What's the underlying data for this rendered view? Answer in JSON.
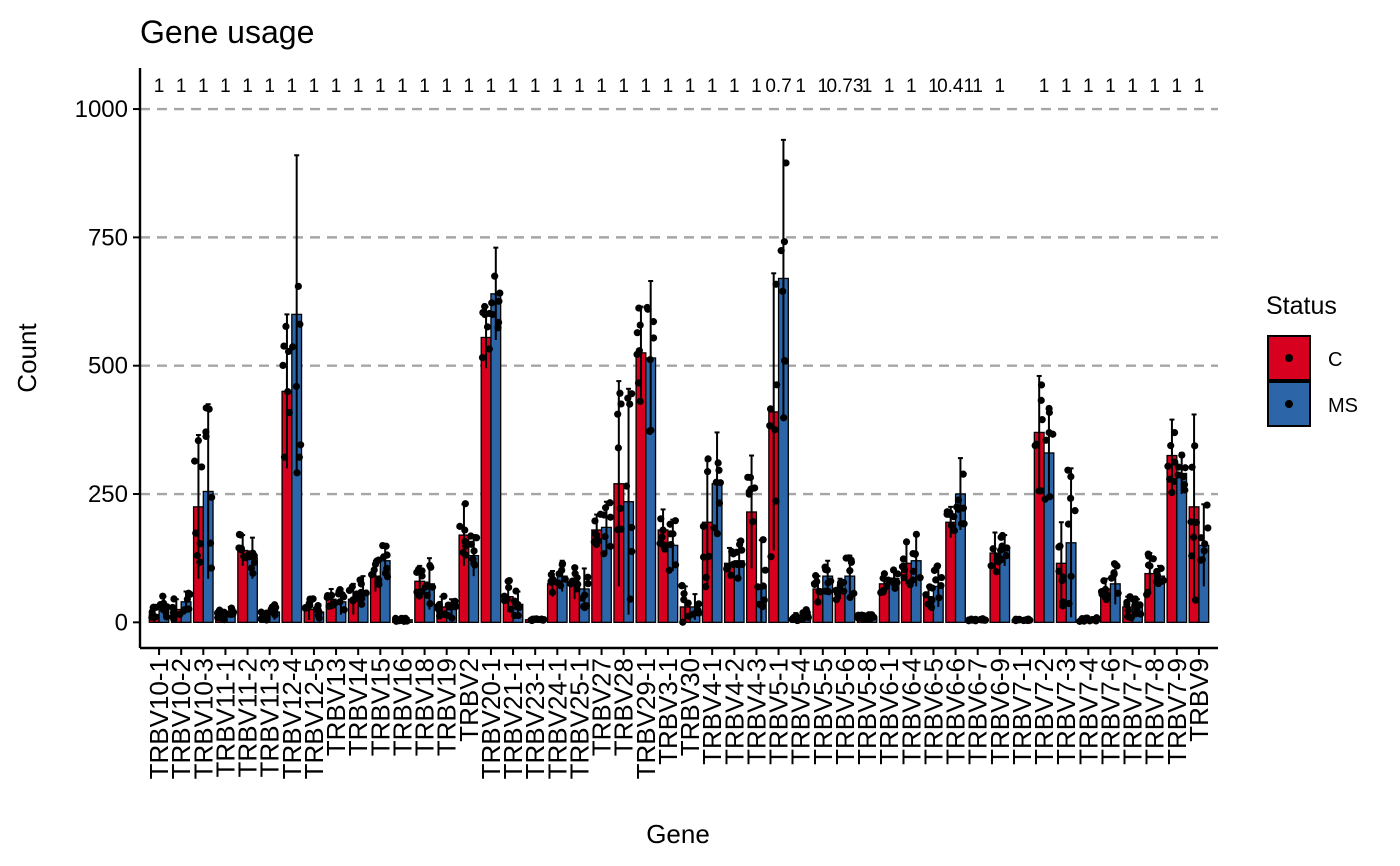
{
  "chart_data": {
    "type": "bar",
    "title": "Gene usage",
    "xlabel": "Gene",
    "ylabel": "Count",
    "ylim": [
      -50,
      1080
    ],
    "yticks": [
      0,
      250,
      500,
      750,
      1000
    ],
    "grid": "horizontal dashed",
    "legend": {
      "title": "Status",
      "position": "right"
    },
    "colors": {
      "C": "#d7001f",
      "MS": "#2c65a8"
    },
    "categories": [
      "TRBV10-1",
      "TRBV10-2",
      "TRBV10-3",
      "TRBV11-1",
      "TRBV11-2",
      "TRBV11-3",
      "TRBV12-4",
      "TRBV12-5",
      "TRBV13",
      "TRBV14",
      "TRBV15",
      "TRBV16",
      "TRBV18",
      "TRBV19",
      "TRBV2",
      "TRBV20-1",
      "TRBV21-1",
      "TRBV23-1",
      "TRBV24-1",
      "TRBV25-1",
      "TRBV27",
      "TRBV28",
      "TRBV29-1",
      "TRBV3-1",
      "TRBV30",
      "TRBV4-1",
      "TRBV4-2",
      "TRBV4-3",
      "TRBV5-1",
      "TRBV5-4",
      "TRBV5-5",
      "TRBV5-6",
      "TRBV5-8",
      "TRBV6-1",
      "TRBV6-4",
      "TRBV6-5",
      "TRBV6-6",
      "TRBV6-7",
      "TRBV6-9",
      "TRBV7-1",
      "TRBV7-2",
      "TRBV7-3",
      "TRBV7-4",
      "TRBV7-6",
      "TRBV7-7",
      "TRBV7-8",
      "TRBV7-9",
      "TRBV9"
    ],
    "series": [
      {
        "name": "C",
        "values": [
          15,
          25,
          225,
          15,
          140,
          10,
          450,
          25,
          45,
          45,
          90,
          5,
          80,
          30,
          170,
          555,
          50,
          5,
          75,
          75,
          180,
          270,
          525,
          180,
          30,
          195,
          115,
          215,
          410,
          10,
          65,
          65,
          10,
          75,
          115,
          50,
          195,
          5,
          135,
          5,
          370,
          115,
          5,
          65,
          30,
          95,
          325,
          225
        ],
        "errors": [
          15,
          20,
          140,
          10,
          30,
          10,
          150,
          20,
          20,
          30,
          30,
          3,
          30,
          20,
          60,
          60,
          30,
          2,
          25,
          30,
          30,
          200,
          90,
          40,
          40,
          120,
          30,
          110,
          270,
          8,
          25,
          20,
          5,
          20,
          40,
          20,
          30,
          2,
          40,
          2,
          110,
          80,
          5,
          20,
          20,
          40,
          70,
          180
        ]
      },
      {
        "name": "MS",
        "values": [
          30,
          40,
          255,
          20,
          125,
          20,
          600,
          20,
          40,
          60,
          120,
          5,
          75,
          25,
          130,
          640,
          35,
          5,
          90,
          65,
          185,
          235,
          515,
          150,
          30,
          270,
          120,
          70,
          670,
          15,
          90,
          90,
          10,
          85,
          120,
          70,
          250,
          5,
          140,
          5,
          330,
          155,
          5,
          75,
          30,
          90,
          290,
          150
        ],
        "errors": [
          20,
          20,
          170,
          10,
          40,
          15,
          310,
          15,
          25,
          30,
          30,
          3,
          50,
          20,
          40,
          90,
          25,
          2,
          30,
          40,
          50,
          220,
          150,
          50,
          25,
          100,
          40,
          90,
          270,
          10,
          30,
          40,
          5,
          20,
          50,
          40,
          70,
          2,
          30,
          2,
          90,
          145,
          5,
          40,
          15,
          20,
          40,
          80
        ]
      }
    ],
    "pvalues": [
      "1",
      "1",
      "1",
      "1",
      "1",
      "1",
      "1",
      "1",
      "1",
      "1",
      "1",
      "1",
      "1",
      "1",
      "1",
      "1",
      "1",
      "1",
      "1",
      "1",
      "1",
      "1",
      "1",
      "1",
      "1",
      "1",
      "1",
      "1",
      "0.7",
      "1",
      "1",
      "0.73",
      "1",
      "1",
      "1",
      "1",
      "0.41",
      "1",
      "1",
      "",
      "1",
      "1",
      "1",
      "1",
      "1",
      "1",
      "1",
      "1"
    ]
  }
}
